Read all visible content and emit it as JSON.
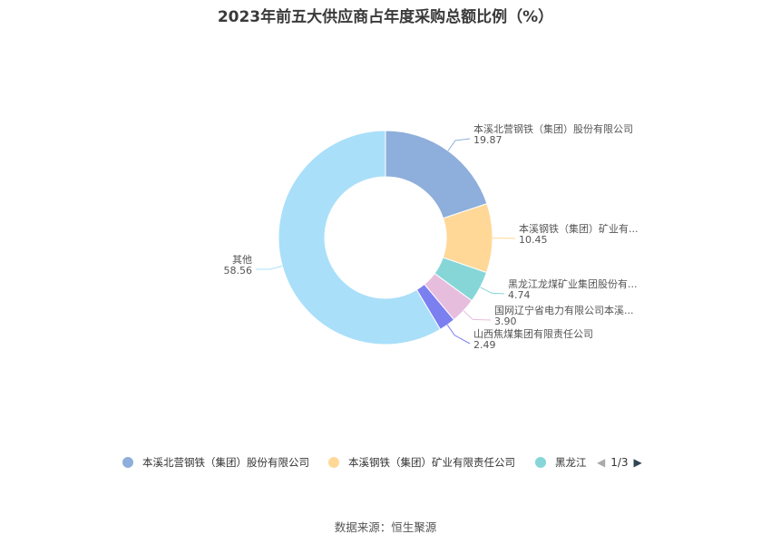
{
  "chart_data": {
    "type": "pie",
    "title": "2023年前五大供应商占年度采购总额比例（%）",
    "slices": [
      {
        "name": "本溪北营钢铁（集团）股份有限公司",
        "short_label": "本溪北营钢铁（集团）股份有限公司",
        "value": 19.87,
        "value_label": "19.87",
        "color": "#8eaedb"
      },
      {
        "name": "本溪钢铁（集团）矿业有限责任公司",
        "short_label": "本溪钢铁（集团）矿业有...",
        "value": 10.45,
        "value_label": "10.45",
        "color": "#ffd898"
      },
      {
        "name": "黑龙江龙煤矿业集团股份有...",
        "short_label": "黑龙江龙煤矿业集团股份有...",
        "value": 4.74,
        "value_label": "4.74",
        "color": "#86d6d8"
      },
      {
        "name": "国网辽宁省电力有限公司本溪...",
        "short_label": "国网辽宁省电力有限公司本溪...",
        "value": 3.9,
        "value_label": "3.90",
        "color": "#e7bddd"
      },
      {
        "name": "山西焦煤集团有限责任公司",
        "short_label": "山西焦煤集团有限责任公司",
        "value": 2.49,
        "value_label": "2.49",
        "color": "#7b7ff0"
      },
      {
        "name": "其他",
        "short_label": "其他",
        "value": 58.56,
        "value_label": "58.56",
        "color": "#a9dff9"
      }
    ],
    "legend": {
      "position": "bottom",
      "items": [
        "本溪北营钢铁（集团）股份有限公司",
        "本溪钢铁（集团）矿业有限责任公司",
        "黑龙江"
      ],
      "colors": [
        "#8eaedb",
        "#ffd898",
        "#86d6d8"
      ],
      "page": "1/3",
      "prev_arrow_color": "#aaaaaa",
      "next_arrow_color": "#2f4554"
    }
  },
  "footer": {
    "source": "数据来源：恒生聚源"
  }
}
